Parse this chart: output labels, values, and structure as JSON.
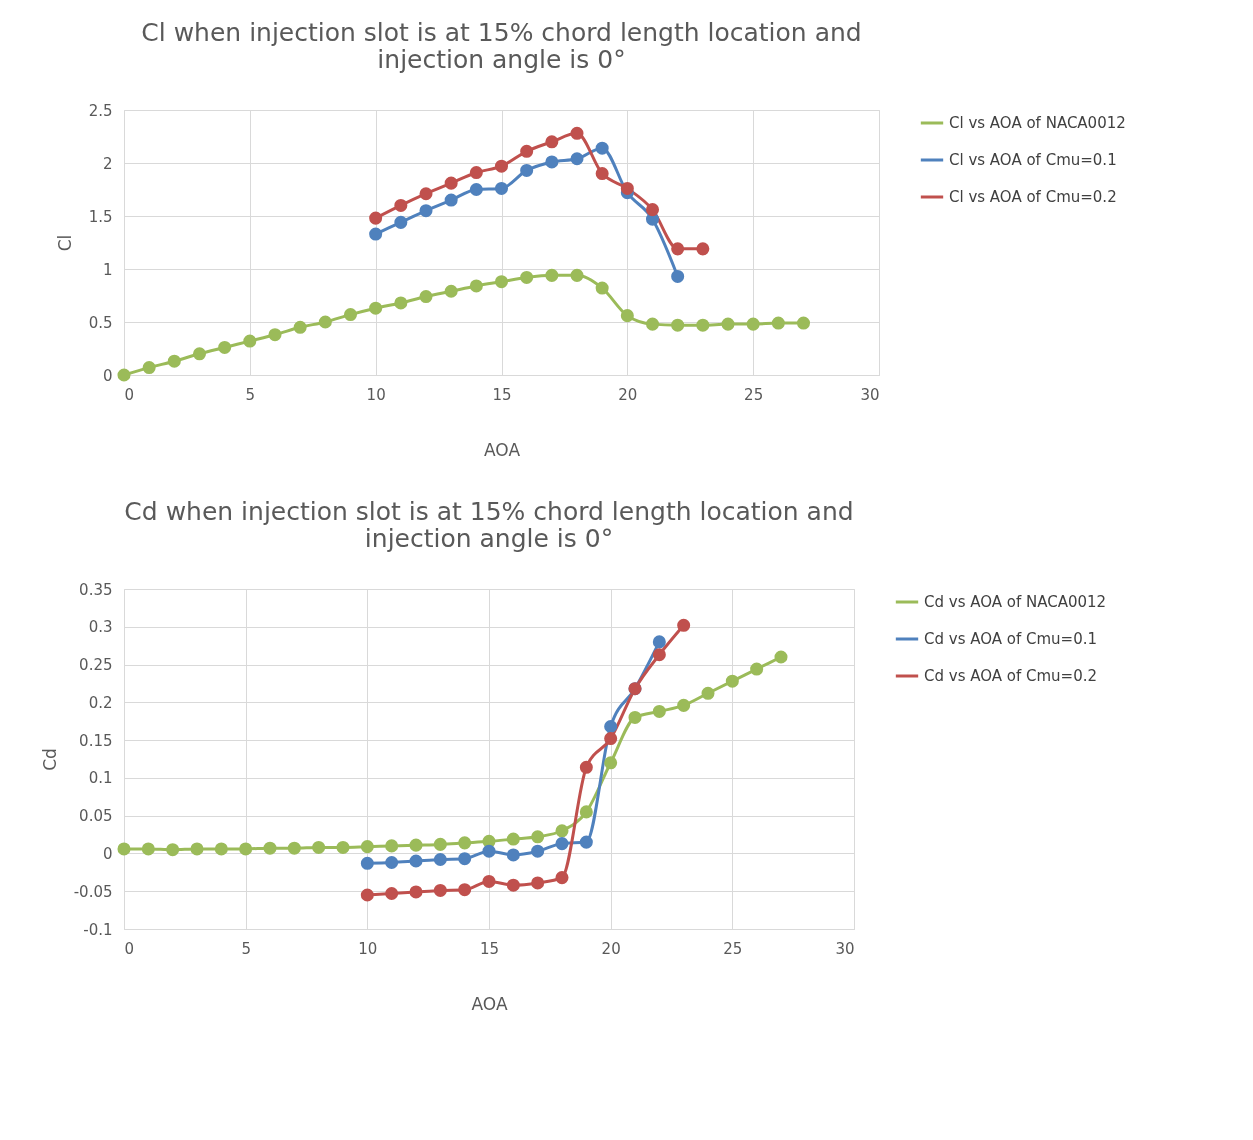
{
  "chart_data": [
    {
      "type": "line",
      "title": "Cl when injection slot is at 15% chord length location and\ninjection angle is 0°",
      "xlabel": "AOA",
      "ylabel": "Cl",
      "xlim": [
        0,
        30
      ],
      "xticks": [
        0,
        5,
        10,
        15,
        20,
        25,
        30
      ],
      "ylim": [
        0,
        2.5
      ],
      "yticks": [
        0,
        0.5,
        1,
        1.5,
        2,
        2.5
      ],
      "grid": true,
      "legend": "right",
      "marker": "circle",
      "line_style": "solid",
      "series": [
        {
          "name": "Cl vs AOA of NACA0012",
          "color": "#9bbb59",
          "x": [
            0,
            1,
            2,
            3,
            4,
            5,
            6,
            7,
            8,
            9,
            10,
            11,
            12,
            13,
            14,
            15,
            16,
            17,
            18,
            19,
            20,
            21,
            22,
            23,
            24,
            25,
            26,
            27
          ],
          "values": [
            0,
            0.07,
            0.13,
            0.2,
            0.26,
            0.32,
            0.38,
            0.45,
            0.5,
            0.57,
            0.63,
            0.68,
            0.74,
            0.79,
            0.84,
            0.88,
            0.92,
            0.94,
            0.94,
            0.82,
            0.56,
            0.48,
            0.47,
            0.47,
            0.48,
            0.48,
            0.49,
            0.49
          ]
        },
        {
          "name": "Cl vs AOA of Cmu=0.1",
          "color": "#4f81bd",
          "x": [
            10,
            11,
            12,
            13,
            14,
            15,
            16,
            17,
            18,
            19,
            20,
            21,
            22
          ],
          "values": [
            1.33,
            1.44,
            1.55,
            1.65,
            1.75,
            1.76,
            1.93,
            2.01,
            2.04,
            2.14,
            1.72,
            1.47,
            0.93
          ]
        },
        {
          "name": "Cl vs AOA of Cmu=0.2",
          "color": "#c0504d",
          "x": [
            10,
            11,
            12,
            13,
            14,
            15,
            16,
            17,
            18,
            19,
            20,
            21,
            22,
            23
          ],
          "values": [
            1.48,
            1.6,
            1.71,
            1.81,
            1.91,
            1.97,
            2.11,
            2.2,
            2.28,
            1.9,
            1.76,
            1.56,
            1.19,
            1.19
          ]
        }
      ]
    },
    {
      "type": "line",
      "title": "Cd when injection slot is at 15% chord length location and\ninjection angle is 0°",
      "xlabel": "AOA",
      "ylabel": "Cd",
      "xlim": [
        0,
        30
      ],
      "xticks": [
        0,
        5,
        10,
        15,
        20,
        25,
        30
      ],
      "ylim": [
        -0.1,
        0.35
      ],
      "yticks": [
        -0.1,
        -0.05,
        0,
        0.05,
        0.1,
        0.15,
        0.2,
        0.25,
        0.3,
        0.35
      ],
      "grid": true,
      "legend": "right",
      "marker": "circle",
      "line_style": "solid",
      "series": [
        {
          "name": "Cd vs AOA of NACA0012",
          "color": "#9bbb59",
          "x": [
            0,
            1,
            2,
            3,
            4,
            5,
            6,
            7,
            8,
            9,
            10,
            11,
            12,
            13,
            14,
            15,
            16,
            17,
            18,
            19,
            20,
            21,
            22,
            23,
            24,
            25,
            26,
            27
          ],
          "values": [
            0.006,
            0.006,
            0.005,
            0.006,
            0.006,
            0.006,
            0.007,
            0.007,
            0.008,
            0.008,
            0.009,
            0.01,
            0.011,
            0.012,
            0.014,
            0.016,
            0.019,
            0.022,
            0.03,
            0.055,
            0.12,
            0.18,
            0.188,
            0.196,
            0.212,
            0.228,
            0.244,
            0.26
          ]
        },
        {
          "name": "Cd vs AOA of Cmu=0.1",
          "color": "#4f81bd",
          "x": [
            10,
            11,
            12,
            13,
            14,
            15,
            16,
            17,
            18,
            19,
            20,
            21,
            22
          ],
          "values": [
            -0.013,
            -0.012,
            -0.01,
            -0.008,
            -0.007,
            0.003,
            -0.002,
            0.003,
            0.013,
            0.015,
            0.168,
            0.218,
            0.28
          ]
        },
        {
          "name": "Cd vs AOA of Cmu=0.2",
          "color": "#c0504d",
          "x": [
            10,
            11,
            12,
            13,
            14,
            15,
            16,
            17,
            18,
            19,
            20,
            21,
            22,
            23
          ],
          "values": [
            -0.055,
            -0.053,
            -0.051,
            -0.049,
            -0.048,
            -0.037,
            -0.042,
            -0.039,
            -0.032,
            0.114,
            0.152,
            0.218,
            0.263,
            0.302
          ]
        }
      ]
    }
  ]
}
